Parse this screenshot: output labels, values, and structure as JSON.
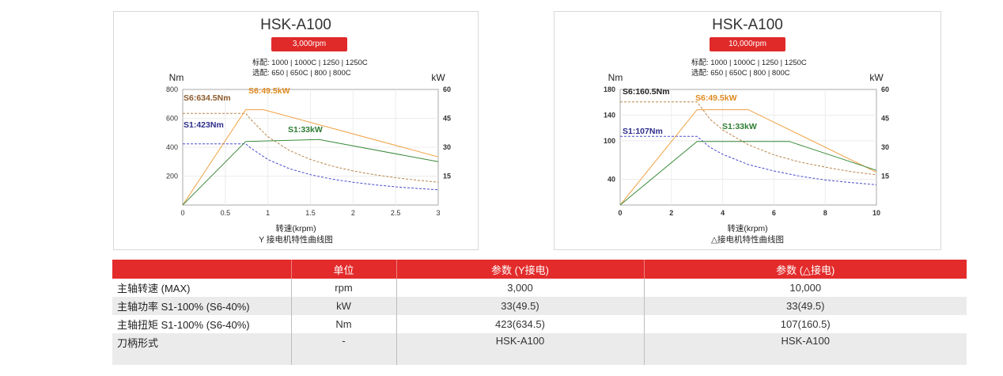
{
  "chart_data": [
    {
      "type": "line",
      "title": "HSK-A100",
      "badge": "3,000rpm",
      "spec_line1": "标配: 1000 | 1000C | 1250 | 1250C",
      "spec_line2": "选配: 650 | 650C | 800 | 800C",
      "ylabel_left": "Nm",
      "ylabel_right": "kW",
      "xlabel": "转速(krpm)",
      "caption": "Y 接电机特性曲线图",
      "xlim": [
        0,
        3
      ],
      "ylim_left": [
        0,
        800
      ],
      "ylim_right": [
        0,
        60
      ],
      "x_ticks": [
        "0",
        "0.5",
        "1",
        "1.5",
        "2",
        "2.5",
        "3"
      ],
      "x_tick_values": [
        0,
        0.5,
        1,
        1.5,
        2,
        2.5,
        3
      ],
      "y_left_ticks": [
        "200",
        "400",
        "600",
        "800"
      ],
      "y_left_tick_values": [
        200,
        400,
        600,
        800
      ],
      "y_right_ticks": [
        "15",
        "30",
        "45",
        "60"
      ],
      "y_right_tick_values": [
        15,
        30,
        45,
        60
      ],
      "grid": true,
      "series": [
        {
          "name": "S6:634.5Nm",
          "axis": "left",
          "color": "#b8864a",
          "dashed": true,
          "x": [
            0,
            0.74,
            0.8,
            1.0,
            1.25,
            1.5,
            1.75,
            2.0,
            2.25,
            2.5,
            2.75,
            3.0
          ],
          "y": [
            634.5,
            634.5,
            592,
            473,
            378,
            315,
            270,
            236,
            210,
            189,
            172,
            158
          ]
        },
        {
          "name": "S1:423Nm",
          "axis": "left",
          "color": "#4a4ad0",
          "dashed": true,
          "x": [
            0,
            0.74,
            0.8,
            1.0,
            1.25,
            1.5,
            1.75,
            2.0,
            2.25,
            2.5,
            2.75,
            3.0
          ],
          "y": [
            423,
            423,
            394,
            315,
            252,
            210,
            180,
            158,
            140,
            126,
            115,
            105
          ]
        },
        {
          "name": "S6:49.5kW",
          "axis": "right",
          "color": "#f0a040",
          "dashed": false,
          "x": [
            0,
            0.74,
            0.95,
            3.0
          ],
          "y": [
            0,
            49.5,
            49.5,
            25
          ]
        },
        {
          "name": "S1:33kW",
          "axis": "right",
          "color": "#3a8a3a",
          "dashed": false,
          "x": [
            0,
            0.74,
            1.6,
            3.0
          ],
          "y": [
            0,
            33,
            34,
            22.5
          ]
        }
      ],
      "annotations": [
        {
          "text": "S6:634.5Nm",
          "color": "#8b5a2b"
        },
        {
          "text": "S6:49.5kW",
          "color": "#e08a20"
        },
        {
          "text": "S1:423Nm",
          "color": "#2d2d8a"
        },
        {
          "text": "S1:33kW",
          "color": "#2e7d32"
        }
      ]
    },
    {
      "type": "line",
      "title": "HSK-A100",
      "badge": "10,000rpm",
      "spec_line1": "标配: 1000 | 1000C | 1250 | 1250C",
      "spec_line2": "选配: 650 | 650C | 800 | 800C",
      "ylabel_left": "Nm",
      "ylabel_right": "kW",
      "xlabel": "转速(krpm)",
      "caption": "△接电机特性曲线图",
      "xlim": [
        0,
        10
      ],
      "ylim_left": [
        0,
        180
      ],
      "ylim_right": [
        0,
        60
      ],
      "x_ticks": [
        "0",
        "2",
        "4",
        "6",
        "8",
        "10"
      ],
      "x_tick_values": [
        0,
        2,
        4,
        6,
        8,
        10
      ],
      "y_left_ticks": [
        "40",
        "100",
        "140",
        "180"
      ],
      "y_left_tick_values": [
        40,
        100,
        140,
        180
      ],
      "y_right_ticks": [
        "15",
        "30",
        "45",
        "60"
      ],
      "y_right_tick_values": [
        15,
        30,
        45,
        60
      ],
      "grid": true,
      "series": [
        {
          "name": "S6:160.5Nm",
          "axis": "left",
          "color": "#b8864a",
          "dashed": true,
          "x": [
            0,
            3.0,
            3.5,
            4,
            5,
            6,
            7,
            8,
            9,
            10
          ],
          "y": [
            160.5,
            160.5,
            134,
            117,
            94,
            78,
            67,
            59,
            52,
            47
          ]
        },
        {
          "name": "S1:107Nm",
          "axis": "left",
          "color": "#4a4ad0",
          "dashed": true,
          "x": [
            0,
            3.0,
            3.5,
            4,
            5,
            6,
            7,
            8,
            9,
            10
          ],
          "y": [
            107,
            107,
            90,
            79,
            63,
            53,
            45,
            39,
            35,
            31.5
          ]
        },
        {
          "name": "S6:49.5kW",
          "axis": "right",
          "color": "#f0a040",
          "dashed": false,
          "x": [
            0,
            3.0,
            5.0,
            10
          ],
          "y": [
            0,
            49.5,
            49.5,
            17
          ]
        },
        {
          "name": "S1:33kW",
          "axis": "right",
          "color": "#3a8a3a",
          "dashed": false,
          "x": [
            0,
            3.0,
            6.6,
            10
          ],
          "y": [
            0,
            33,
            33,
            18
          ]
        }
      ],
      "annotations": [
        {
          "text": "S6:160.5Nm",
          "color": "#222222"
        },
        {
          "text": "S6:49.5kW",
          "color": "#e08a20"
        },
        {
          "text": "S1:107Nm",
          "color": "#2d2d8a"
        },
        {
          "text": "S1:33kW",
          "color": "#2e7d32"
        }
      ]
    }
  ],
  "table": {
    "headers": [
      "",
      "单位",
      "参数 (Y接电)",
      "参数 (△接电)"
    ],
    "rows": [
      [
        "主轴转速 (MAX)",
        "rpm",
        "3,000",
        "10,000"
      ],
      [
        "主轴功率 S1-100% (S6-40%)",
        "kW",
        "33(49.5)",
        "33(49.5)"
      ],
      [
        "主轴扭矩 S1-100% (S6-40%)",
        "Nm",
        "423(634.5)",
        "107(160.5)"
      ],
      [
        "刀柄形式",
        "-",
        "HSK-A100",
        "HSK-A100"
      ]
    ]
  },
  "colors": {
    "accent": "#e32b2b",
    "row_alt": "#ebebeb"
  }
}
